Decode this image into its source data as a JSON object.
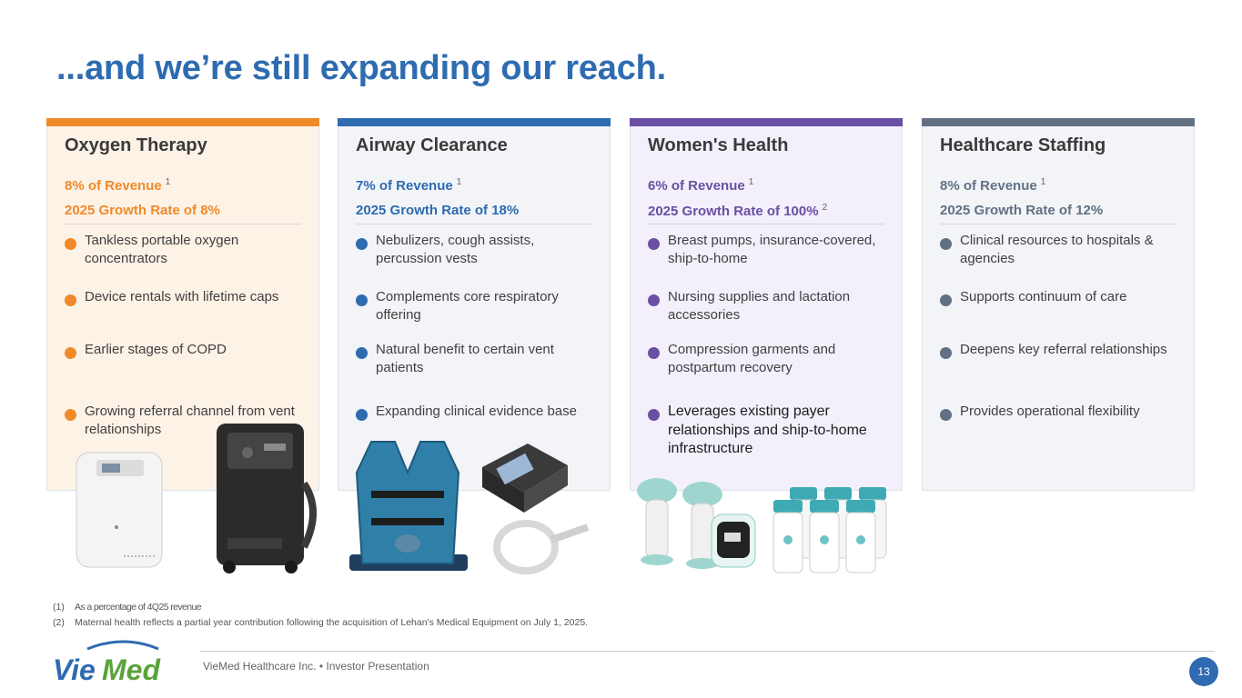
{
  "title": "...and we’re still expanding our reach.",
  "cards": [
    {
      "name": "Oxygen Therapy",
      "accent": "#f0892a",
      "background": "#fdf2e6",
      "revenue": "8% of Revenue",
      "revenue_note": "1",
      "growth": "2025 Growth Rate of 8%",
      "growth_note": "",
      "text_color": "#f0892a",
      "bullets": [
        "Tankless portable oxygen concentrators",
        "Device rentals with lifetime caps",
        "Earlier stages of COPD",
        "Growing referral channel from vent relationships"
      ]
    },
    {
      "name": "Airway Clearance",
      "accent": "#2e6bb0",
      "background": "#f2f4f8",
      "revenue": "7% of Revenue",
      "revenue_note": "1",
      "growth": "2025 Growth Rate of 18%",
      "growth_note": "",
      "text_color": "#2e6bb0",
      "bullets": [
        "Nebulizers, cough assists, percussion vests",
        "Complements core respiratory offering",
        "Natural benefit to certain vent patients",
        "Expanding clinical evidence base"
      ]
    },
    {
      "name": "Women's Health",
      "accent": "#6a4fa3",
      "background": "#f3f0fb",
      "revenue": "6% of Revenue",
      "revenue_note": "1",
      "growth": "2025 Growth Rate of 100%",
      "growth_note": "2",
      "text_color": "#6a4fa3",
      "bullets": [
        "Breast pumps, insurance-covered, ship-to-home",
        "Nursing supplies and lactation accessories",
        "Compression garments and postpartum recovery",
        "Leverages existing payer relationships and ship-to-home infrastructure"
      ]
    },
    {
      "name": "Healthcare Staffing",
      "accent": "#617183",
      "background": "#f2f4f8",
      "revenue": "8% of Revenue",
      "revenue_note": "1",
      "growth": "2025 Growth Rate of 12%",
      "growth_note": "",
      "text_color": "#617183",
      "bullets": [
        "Clinical resources to hospitals & agencies",
        "Supports continuum of care",
        "Deepens key referral relationships",
        "Provides operational flexibility"
      ]
    }
  ],
  "footnotes": [
    {
      "num": "(1)",
      "text": "As a percentage of 4Q25 revenue"
    },
    {
      "num": "(2)",
      "text": "Maternal health reflects a partial year contribution following the acquisition of Lehan's Medical Equipment on July 1, 2025."
    }
  ],
  "footer": {
    "company": "VieMed Healthcare Inc.  •  Investor Presentation",
    "page": "13"
  },
  "logo": {
    "text_a": "Vie",
    "text_b": "Med",
    "color_a": "#2e6bb0",
    "color_b": "#5aa33c"
  },
  "icons": [
    "portable-oxygen-concentrator-icon",
    "oxygen-concentrator-icon",
    "percussion-vest-icon",
    "cough-assist-device-icon",
    "breast-pump-icon",
    "baby-bottles-icon"
  ]
}
